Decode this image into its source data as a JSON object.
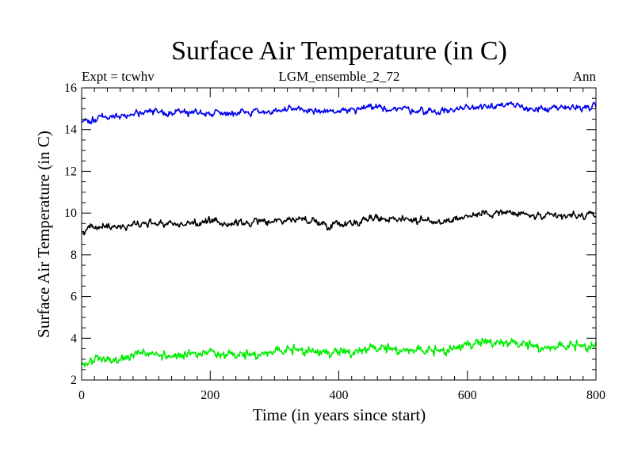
{
  "chart_data": {
    "type": "line",
    "title": "Surface Air Temperature (in C)",
    "subtitle_left": "Expt = tcwhv",
    "subtitle_center": "LGM_ensemble_2_72",
    "subtitle_right": "Ann",
    "xlabel": "Time (in years since start)",
    "ylabel": "Surface Air Temperature (in C)",
    "xlim": [
      0,
      800
    ],
    "ylim": [
      2,
      16
    ],
    "xticks": [
      0,
      200,
      400,
      600,
      800
    ],
    "yticks": [
      2,
      4,
      6,
      8,
      10,
      12,
      14,
      16
    ],
    "grid": false,
    "series": [
      {
        "name": "upper",
        "color": "#0000ee",
        "noise": 0.12,
        "seed": 11,
        "anchors_x": [
          0,
          20,
          60,
          100,
          150,
          200,
          250,
          300,
          350,
          380,
          420,
          450,
          500,
          550,
          600,
          640,
          680,
          720,
          760,
          800
        ],
        "anchors_y": [
          14.35,
          14.55,
          14.65,
          14.8,
          14.85,
          14.8,
          14.85,
          14.9,
          14.95,
          14.85,
          14.9,
          15.05,
          15.0,
          14.85,
          15.05,
          15.2,
          15.1,
          14.95,
          15.05,
          15.1
        ]
      },
      {
        "name": "middle",
        "color": "#000000",
        "noise": 0.13,
        "seed": 23,
        "anchors_x": [
          0,
          20,
          60,
          100,
          150,
          200,
          250,
          300,
          350,
          380,
          420,
          450,
          500,
          550,
          600,
          640,
          680,
          720,
          760,
          800
        ],
        "anchors_y": [
          9.1,
          9.3,
          9.35,
          9.55,
          9.5,
          9.55,
          9.5,
          9.65,
          9.7,
          9.45,
          9.55,
          9.75,
          9.75,
          9.55,
          9.85,
          10.05,
          9.95,
          9.8,
          9.85,
          9.9
        ]
      },
      {
        "name": "lower",
        "color": "#00ee00",
        "noise": 0.18,
        "seed": 37,
        "anchors_x": [
          0,
          20,
          60,
          100,
          150,
          200,
          250,
          300,
          350,
          380,
          420,
          450,
          500,
          550,
          600,
          640,
          680,
          720,
          760,
          800
        ],
        "anchors_y": [
          2.7,
          2.95,
          3.05,
          3.2,
          3.15,
          3.2,
          3.1,
          3.3,
          3.4,
          3.2,
          3.3,
          3.45,
          3.4,
          3.3,
          3.6,
          3.8,
          3.65,
          3.5,
          3.55,
          3.6
        ]
      }
    ]
  }
}
